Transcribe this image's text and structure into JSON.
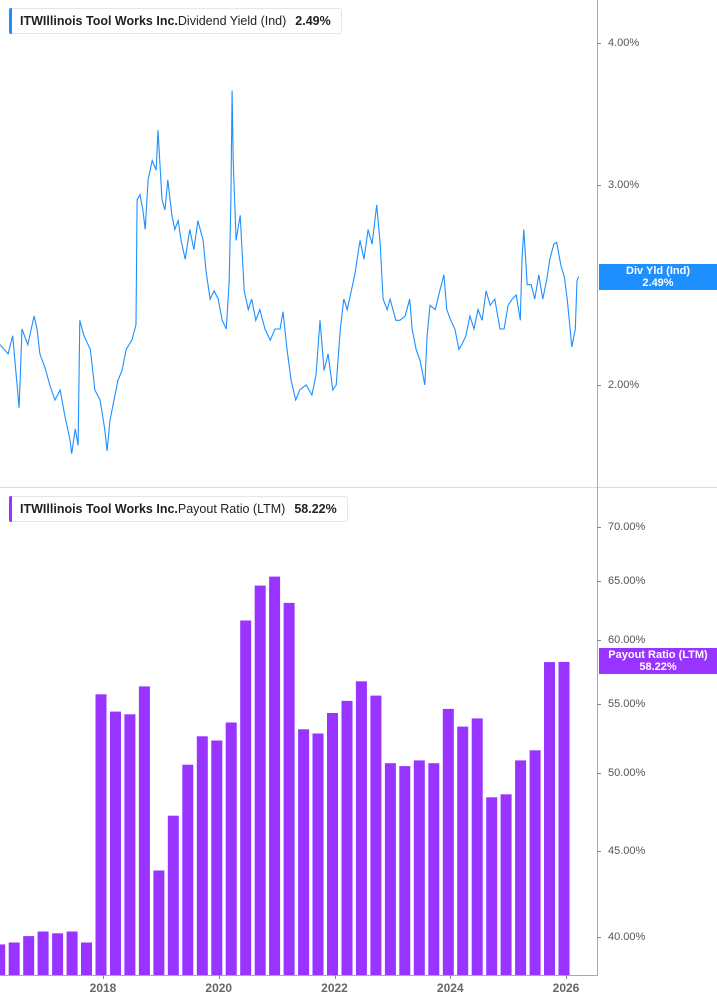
{
  "top_legend": {
    "ticker": "ITW",
    "company": "Illinois Tool Works Inc.",
    "metric": "Dividend Yield (Ind)",
    "value": "2.49%"
  },
  "bottom_legend": {
    "ticker": "ITW",
    "company": "Illinois Tool Works Inc.",
    "metric": "Payout Ratio (LTM)",
    "value": "58.22%"
  },
  "top_badge": {
    "label": "Div Yld (Ind)",
    "value": "2.49%"
  },
  "bottom_badge": {
    "label": "Payout Ratio (LTM)",
    "value": "58.22%"
  },
  "colors": {
    "line": "#1E8FFF",
    "bars": "#9933FF",
    "badge_blue": "#1E8FFF",
    "badge_purple": "#9933FF"
  },
  "chart_data": [
    {
      "type": "line",
      "title": "ITW Dividend Yield (Ind)",
      "yscale": "log",
      "ylim": [
        1.6,
        4.3
      ],
      "xlim": [
        2016.22,
        2026.22
      ],
      "yticks": [
        {
          "v": 4.0,
          "label": "4.00%"
        },
        {
          "v": 3.0,
          "label": "3.00%"
        },
        {
          "v": 2.0,
          "label": "2.00%"
        }
      ],
      "legend": "top-left",
      "series": [
        {
          "name": "Dividend Yield (Ind)",
          "points": [
            [
              2016.22,
              2.17
            ],
            [
              2016.36,
              2.13
            ],
            [
              2016.44,
              2.21
            ],
            [
              2016.55,
              1.91
            ],
            [
              2016.6,
              2.24
            ],
            [
              2016.7,
              2.17
            ],
            [
              2016.81,
              2.3
            ],
            [
              2016.86,
              2.24
            ],
            [
              2016.91,
              2.13
            ],
            [
              2017.0,
              2.07
            ],
            [
              2017.08,
              2.0
            ],
            [
              2017.17,
              1.94
            ],
            [
              2017.26,
              1.98
            ],
            [
              2017.34,
              1.88
            ],
            [
              2017.43,
              1.79
            ],
            [
              2017.46,
              1.74
            ],
            [
              2017.52,
              1.83
            ],
            [
              2017.57,
              1.77
            ],
            [
              2017.6,
              2.28
            ],
            [
              2017.67,
              2.21
            ],
            [
              2017.78,
              2.15
            ],
            [
              2017.86,
              1.98
            ],
            [
              2017.95,
              1.94
            ],
            [
              2018.03,
              1.83
            ],
            [
              2018.07,
              1.75
            ],
            [
              2018.12,
              1.86
            ],
            [
              2018.19,
              1.94
            ],
            [
              2018.26,
              2.02
            ],
            [
              2018.33,
              2.06
            ],
            [
              2018.4,
              2.15
            ],
            [
              2018.5,
              2.19
            ],
            [
              2018.57,
              2.26
            ],
            [
              2018.59,
              2.91
            ],
            [
              2018.64,
              2.94
            ],
            [
              2018.69,
              2.85
            ],
            [
              2018.73,
              2.74
            ],
            [
              2018.78,
              3.03
            ],
            [
              2018.85,
              3.15
            ],
            [
              2018.92,
              3.09
            ],
            [
              2018.95,
              3.35
            ],
            [
              2019.02,
              2.91
            ],
            [
              2019.07,
              2.85
            ],
            [
              2019.12,
              3.03
            ],
            [
              2019.19,
              2.82
            ],
            [
              2019.24,
              2.74
            ],
            [
              2019.3,
              2.79
            ],
            [
              2019.35,
              2.68
            ],
            [
              2019.42,
              2.58
            ],
            [
              2019.5,
              2.74
            ],
            [
              2019.57,
              2.63
            ],
            [
              2019.64,
              2.79
            ],
            [
              2019.73,
              2.68
            ],
            [
              2019.78,
              2.52
            ],
            [
              2019.85,
              2.38
            ],
            [
              2019.92,
              2.42
            ],
            [
              2019.99,
              2.38
            ],
            [
              2020.06,
              2.28
            ],
            [
              2020.13,
              2.24
            ],
            [
              2020.18,
              2.47
            ],
            [
              2020.21,
              2.91
            ],
            [
              2020.23,
              3.63
            ],
            [
              2020.25,
              3.15
            ],
            [
              2020.3,
              2.68
            ],
            [
              2020.37,
              2.82
            ],
            [
              2020.44,
              2.42
            ],
            [
              2020.51,
              2.33
            ],
            [
              2020.57,
              2.38
            ],
            [
              2020.64,
              2.28
            ],
            [
              2020.71,
              2.33
            ],
            [
              2020.8,
              2.24
            ],
            [
              2020.89,
              2.19
            ],
            [
              2020.97,
              2.24
            ],
            [
              2021.06,
              2.24
            ],
            [
              2021.11,
              2.32
            ],
            [
              2021.18,
              2.15
            ],
            [
              2021.25,
              2.02
            ],
            [
              2021.33,
              1.94
            ],
            [
              2021.4,
              1.98
            ],
            [
              2021.51,
              2.0
            ],
            [
              2021.61,
              1.96
            ],
            [
              2021.68,
              2.04
            ],
            [
              2021.75,
              2.28
            ],
            [
              2021.82,
              2.06
            ],
            [
              2021.89,
              2.13
            ],
            [
              2021.97,
              1.98
            ],
            [
              2022.03,
              2.0
            ],
            [
              2022.1,
              2.24
            ],
            [
              2022.16,
              2.38
            ],
            [
              2022.22,
              2.33
            ],
            [
              2022.29,
              2.42
            ],
            [
              2022.35,
              2.5
            ],
            [
              2022.44,
              2.68
            ],
            [
              2022.51,
              2.58
            ],
            [
              2022.58,
              2.74
            ],
            [
              2022.65,
              2.66
            ],
            [
              2022.73,
              2.88
            ],
            [
              2022.79,
              2.66
            ],
            [
              2022.84,
              2.38
            ],
            [
              2022.91,
              2.33
            ],
            [
              2022.96,
              2.38
            ],
            [
              2023.06,
              2.28
            ],
            [
              2023.13,
              2.28
            ],
            [
              2023.22,
              2.3
            ],
            [
              2023.3,
              2.38
            ],
            [
              2023.34,
              2.24
            ],
            [
              2023.41,
              2.15
            ],
            [
              2023.48,
              2.1
            ],
            [
              2023.56,
              2.0
            ],
            [
              2023.6,
              2.21
            ],
            [
              2023.65,
              2.35
            ],
            [
              2023.74,
              2.33
            ],
            [
              2023.82,
              2.42
            ],
            [
              2023.89,
              2.5
            ],
            [
              2023.94,
              2.33
            ],
            [
              2024.01,
              2.28
            ],
            [
              2024.08,
              2.24
            ],
            [
              2024.15,
              2.15
            ],
            [
              2024.2,
              2.17
            ],
            [
              2024.27,
              2.21
            ],
            [
              2024.34,
              2.3
            ],
            [
              2024.41,
              2.24
            ],
            [
              2024.48,
              2.33
            ],
            [
              2024.55,
              2.28
            ],
            [
              2024.62,
              2.42
            ],
            [
              2024.69,
              2.35
            ],
            [
              2024.77,
              2.38
            ],
            [
              2024.86,
              2.24
            ],
            [
              2024.93,
              2.24
            ],
            [
              2025.0,
              2.35
            ],
            [
              2025.07,
              2.38
            ],
            [
              2025.14,
              2.4
            ],
            [
              2025.21,
              2.28
            ],
            [
              2025.24,
              2.58
            ],
            [
              2025.27,
              2.74
            ],
            [
              2025.33,
              2.45
            ],
            [
              2025.4,
              2.45
            ],
            [
              2025.46,
              2.38
            ],
            [
              2025.53,
              2.5
            ],
            [
              2025.6,
              2.38
            ],
            [
              2025.67,
              2.48
            ],
            [
              2025.72,
              2.58
            ],
            [
              2025.79,
              2.66
            ],
            [
              2025.84,
              2.67
            ],
            [
              2025.91,
              2.55
            ],
            [
              2025.97,
              2.49
            ],
            [
              2026.02,
              2.38
            ],
            [
              2026.07,
              2.24
            ],
            [
              2026.1,
              2.16
            ],
            [
              2026.16,
              2.24
            ],
            [
              2026.19,
              2.47
            ],
            [
              2026.22,
              2.49
            ]
          ]
        }
      ]
    },
    {
      "type": "bar",
      "title": "ITW Payout Ratio (LTM)",
      "yscale": "log",
      "ylim": [
        38.0,
        72.5
      ],
      "xlim": [
        2016.22,
        2026.22
      ],
      "yticks": [
        {
          "v": 70,
          "label": "70.00%"
        },
        {
          "v": 65,
          "label": "65.00%"
        },
        {
          "v": 60,
          "label": "60.00%"
        },
        {
          "v": 55,
          "label": "55.00%"
        },
        {
          "v": 50,
          "label": "50.00%"
        },
        {
          "v": 45,
          "label": "45.00%"
        },
        {
          "v": 40,
          "label": "40.00%"
        }
      ],
      "xticks": [
        {
          "v": 2018,
          "label": "2018"
        },
        {
          "v": 2020,
          "label": "2020"
        },
        {
          "v": 2022,
          "label": "2022"
        },
        {
          "v": 2024,
          "label": "2024"
        },
        {
          "v": 2026,
          "label": "2026"
        }
      ],
      "first_period": 2016.25,
      "period_step": 0.25,
      "values": [
        39.6,
        39.7,
        40.05,
        40.3,
        40.2,
        40.3,
        39.7,
        55.7,
        54.4,
        54.2,
        56.3,
        43.8,
        47.2,
        50.6,
        52.6,
        52.3,
        53.6,
        61.6,
        64.6,
        65.4,
        63.1,
        53.1,
        52.8,
        54.3,
        55.2,
        56.7,
        55.6,
        50.7,
        50.5,
        50.9,
        50.7,
        54.6,
        53.3,
        53.9,
        48.4,
        48.6,
        50.9,
        51.6,
        58.2,
        58.22
      ]
    }
  ]
}
